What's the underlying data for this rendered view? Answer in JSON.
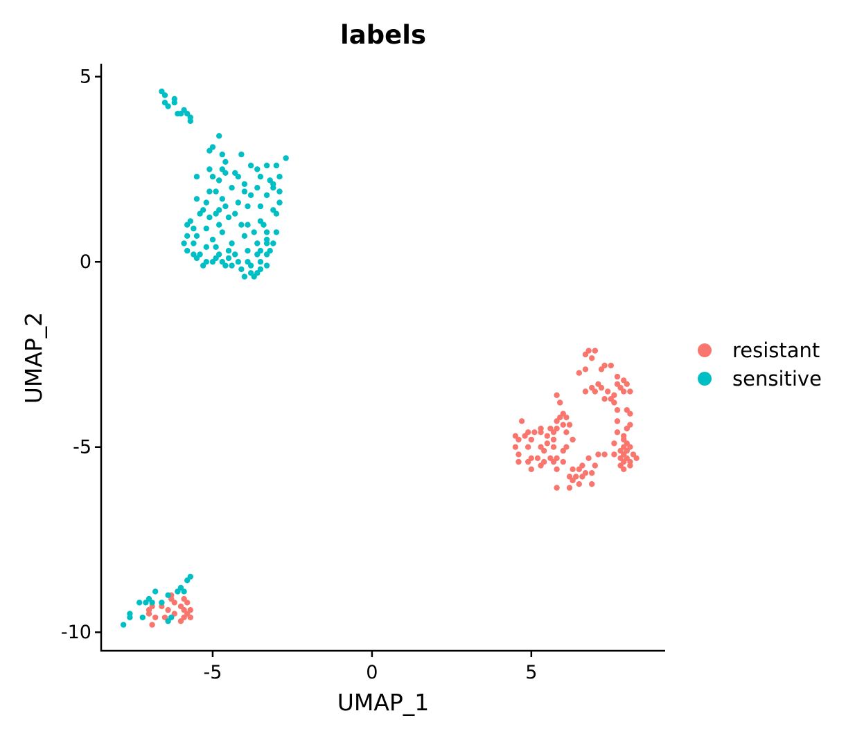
{
  "chart_data": {
    "type": "scatter",
    "title": "labels",
    "xlabel": "UMAP_1",
    "ylabel": "UMAP_2",
    "xlim": [
      -8.5,
      9.2
    ],
    "ylim": [
      -10.5,
      5.35
    ],
    "xticks": [
      -5,
      0,
      5
    ],
    "yticks": [
      -10,
      -5,
      0,
      5
    ],
    "legend_position": "right",
    "series": [
      {
        "name": "resistant",
        "color": "#F8766D",
        "points": [
          [
            6.8,
            -2.4
          ],
          [
            7.0,
            -2.4
          ],
          [
            6.7,
            -2.5
          ],
          [
            6.9,
            -2.6
          ],
          [
            7.3,
            -2.8
          ],
          [
            7.5,
            -2.8
          ],
          [
            6.7,
            -2.9
          ],
          [
            7.2,
            -2.9
          ],
          [
            6.5,
            -3.0
          ],
          [
            7.7,
            -3.1
          ],
          [
            7.9,
            -3.2
          ],
          [
            7.1,
            -3.3
          ],
          [
            7.7,
            -3.3
          ],
          [
            8.0,
            -3.3
          ],
          [
            6.9,
            -3.4
          ],
          [
            7.2,
            -3.4
          ],
          [
            7.8,
            -3.4
          ],
          [
            7.6,
            -3.6
          ],
          [
            6.7,
            -3.5
          ],
          [
            7.0,
            -3.5
          ],
          [
            7.4,
            -3.5
          ],
          [
            7.9,
            -3.5
          ],
          [
            8.1,
            -3.5
          ],
          [
            7.3,
            -3.7
          ],
          [
            7.5,
            -3.7
          ],
          [
            7.6,
            -3.8
          ],
          [
            7.7,
            -4.0
          ],
          [
            5.8,
            -3.6
          ],
          [
            5.9,
            -3.8
          ],
          [
            6.0,
            -4.1
          ],
          [
            5.9,
            -4.2
          ],
          [
            6.1,
            -4.2
          ],
          [
            5.8,
            -4.3
          ],
          [
            6.0,
            -4.4
          ],
          [
            5.6,
            -4.5
          ],
          [
            5.8,
            -4.5
          ],
          [
            6.2,
            -4.4
          ],
          [
            5.3,
            -4.6
          ],
          [
            5.7,
            -4.6
          ],
          [
            5.1,
            -4.6
          ],
          [
            5.5,
            -4.7
          ],
          [
            6.1,
            -4.6
          ],
          [
            4.7,
            -4.3
          ],
          [
            4.9,
            -4.6
          ],
          [
            5.3,
            -4.5
          ],
          [
            5.7,
            -4.8
          ],
          [
            4.5,
            -4.7
          ],
          [
            4.8,
            -4.7
          ],
          [
            4.6,
            -4.8
          ],
          [
            5.0,
            -4.8
          ],
          [
            5.5,
            -4.9
          ],
          [
            6.3,
            -4.8
          ],
          [
            4.5,
            -5.0
          ],
          [
            4.9,
            -5.0
          ],
          [
            5.3,
            -5.0
          ],
          [
            5.7,
            -5.0
          ],
          [
            6.1,
            -5.0
          ],
          [
            4.6,
            -5.2
          ],
          [
            5.4,
            -5.1
          ],
          [
            6.0,
            -5.1
          ],
          [
            5.0,
            -5.3
          ],
          [
            4.9,
            -5.4
          ],
          [
            5.2,
            -5.3
          ],
          [
            5.6,
            -5.3
          ],
          [
            5.8,
            -5.3
          ],
          [
            5.4,
            -5.4
          ],
          [
            5.7,
            -5.4
          ],
          [
            6.0,
            -5.4
          ],
          [
            4.6,
            -5.4
          ],
          [
            5.3,
            -5.5
          ],
          [
            5.0,
            -5.6
          ],
          [
            5.8,
            -5.6
          ],
          [
            6.6,
            -5.5
          ],
          [
            7.0,
            -5.5
          ],
          [
            6.3,
            -5.6
          ],
          [
            6.5,
            -5.6
          ],
          [
            6.7,
            -5.7
          ],
          [
            6.4,
            -5.8
          ],
          [
            6.2,
            -5.8
          ],
          [
            6.6,
            -5.8
          ],
          [
            6.9,
            -5.7
          ],
          [
            6.3,
            -5.9
          ],
          [
            6.5,
            -6.0
          ],
          [
            6.9,
            -6.0
          ],
          [
            6.2,
            -6.1
          ],
          [
            5.8,
            -6.1
          ],
          [
            6.8,
            -5.3
          ],
          [
            7.1,
            -5.2
          ],
          [
            7.9,
            -4.8
          ],
          [
            8.0,
            -4.9
          ],
          [
            7.9,
            -5.0
          ],
          [
            8.1,
            -5.0
          ],
          [
            7.8,
            -5.1
          ],
          [
            8.0,
            -5.1
          ],
          [
            7.6,
            -5.2
          ],
          [
            7.9,
            -5.2
          ],
          [
            8.2,
            -5.2
          ],
          [
            7.8,
            -5.3
          ],
          [
            8.0,
            -5.3
          ],
          [
            8.3,
            -5.3
          ],
          [
            7.9,
            -5.4
          ],
          [
            8.1,
            -5.5
          ],
          [
            7.9,
            -5.6
          ],
          [
            7.6,
            -4.9
          ],
          [
            8.0,
            -4.5
          ],
          [
            8.1,
            -4.4
          ],
          [
            7.7,
            -4.3
          ],
          [
            8.1,
            -4.1
          ],
          [
            8.0,
            -4.0
          ],
          [
            7.7,
            -4.6
          ],
          [
            7.9,
            -4.7
          ],
          [
            7.8,
            -5.5
          ],
          [
            8.1,
            -5.4
          ],
          [
            7.3,
            -5.2
          ],
          [
            -7.0,
            -9.4
          ],
          [
            -6.9,
            -9.3
          ],
          [
            -7.0,
            -9.5
          ],
          [
            -6.8,
            -9.6
          ],
          [
            -6.6,
            -9.3
          ],
          [
            -6.4,
            -9.4
          ],
          [
            -6.3,
            -9.0
          ],
          [
            -6.1,
            -8.9
          ],
          [
            -5.9,
            -9.1
          ],
          [
            -5.8,
            -9.2
          ],
          [
            -6.0,
            -9.3
          ],
          [
            -5.9,
            -9.4
          ],
          [
            -5.7,
            -9.4
          ],
          [
            -5.8,
            -9.5
          ],
          [
            -5.9,
            -9.6
          ],
          [
            -6.0,
            -9.7
          ],
          [
            -6.2,
            -9.5
          ],
          [
            -5.7,
            -9.6
          ],
          [
            -6.5,
            -9.6
          ],
          [
            -6.9,
            -9.8
          ],
          [
            -6.3,
            -9.1
          ],
          [
            -6.2,
            -9.2
          ]
        ]
      },
      {
        "name": "sensitive",
        "color": "#00BFC4",
        "points": [
          [
            -6.6,
            4.6
          ],
          [
            -6.5,
            4.5
          ],
          [
            -6.5,
            4.3
          ],
          [
            -6.2,
            4.3
          ],
          [
            -6.2,
            4.4
          ],
          [
            -6.4,
            4.2
          ],
          [
            -5.9,
            4.1
          ],
          [
            -6.0,
            4.0
          ],
          [
            -5.8,
            4.0
          ],
          [
            -5.7,
            3.9
          ],
          [
            -6.1,
            4.0
          ],
          [
            -5.7,
            3.8
          ],
          [
            -4.8,
            3.4
          ],
          [
            -5.0,
            3.1
          ],
          [
            -4.7,
            2.9
          ],
          [
            -5.1,
            3.0
          ],
          [
            -4.1,
            2.9
          ],
          [
            -3.6,
            2.5
          ],
          [
            -2.7,
            2.8
          ],
          [
            -3.3,
            2.6
          ],
          [
            -3.0,
            2.6
          ],
          [
            -4.7,
            2.5
          ],
          [
            -4.8,
            2.2
          ],
          [
            -4.3,
            2.4
          ],
          [
            -5.1,
            2.5
          ],
          [
            -5.5,
            2.3
          ],
          [
            -4.6,
            2.4
          ],
          [
            -3.8,
            2.6
          ],
          [
            -3.5,
            2.3
          ],
          [
            -2.9,
            2.3
          ],
          [
            -3.2,
            2.2
          ],
          [
            -3.1,
            2.0
          ],
          [
            -5.1,
            1.9
          ],
          [
            -4.9,
            1.9
          ],
          [
            -4.4,
            2.0
          ],
          [
            -4.0,
            2.1
          ],
          [
            -3.1,
            2.1
          ],
          [
            -2.9,
            1.9
          ],
          [
            -4.7,
            1.7
          ],
          [
            -5.5,
            1.7
          ],
          [
            -4.2,
            1.6
          ],
          [
            -3.8,
            1.8
          ],
          [
            -3.3,
            1.8
          ],
          [
            -2.9,
            1.6
          ],
          [
            -4.6,
            1.5
          ],
          [
            -4.9,
            1.3
          ],
          [
            -5.3,
            1.4
          ],
          [
            -5.1,
            1.2
          ],
          [
            -4.8,
            1.0
          ],
          [
            -5.4,
            1.3
          ],
          [
            -4.3,
            1.3
          ],
          [
            -3.9,
            1.5
          ],
          [
            -3.5,
            1.5
          ],
          [
            -3.1,
            1.4
          ],
          [
            -5.8,
            1.0
          ],
          [
            -5.6,
            0.9
          ],
          [
            -5.2,
            0.9
          ],
          [
            -4.7,
            0.8
          ],
          [
            -4.1,
            1.0
          ],
          [
            -3.9,
            1.0
          ],
          [
            -3.5,
            1.1
          ],
          [
            -3.0,
            1.3
          ],
          [
            -5.8,
            0.7
          ],
          [
            -5.5,
            0.7
          ],
          [
            -5.0,
            0.6
          ],
          [
            -4.4,
            0.5
          ],
          [
            -3.7,
            0.8
          ],
          [
            -3.3,
            0.8
          ],
          [
            -3.0,
            0.8
          ],
          [
            -5.9,
            0.5
          ],
          [
            -5.6,
            0.5
          ],
          [
            -5.2,
            0.4
          ],
          [
            -4.9,
            0.4
          ],
          [
            -4.5,
            0.3
          ],
          [
            -3.6,
            0.5
          ],
          [
            -3.3,
            0.5
          ],
          [
            -3.1,
            0.5
          ],
          [
            -5.8,
            0.3
          ],
          [
            -5.6,
            0.2
          ],
          [
            -5.4,
            0.2
          ],
          [
            -4.8,
            0.2
          ],
          [
            -4.3,
            0.2
          ],
          [
            -3.9,
            0.3
          ],
          [
            -3.5,
            0.3
          ],
          [
            -3.2,
            0.3
          ],
          [
            -5.5,
            0.1
          ],
          [
            -5.2,
            0.0
          ],
          [
            -4.9,
            0.1
          ],
          [
            -4.6,
            -0.1
          ],
          [
            -4.2,
            0.0
          ],
          [
            -3.8,
            -0.1
          ],
          [
            -3.5,
            0.0
          ],
          [
            -3.3,
            0.2
          ],
          [
            -5.3,
            -0.1
          ],
          [
            -4.7,
            0.0
          ],
          [
            -4.4,
            -0.1
          ],
          [
            -3.9,
            0.0
          ],
          [
            -4.0,
            -0.4
          ],
          [
            -3.8,
            -0.3
          ],
          [
            -3.6,
            -0.3
          ],
          [
            -3.7,
            -0.4
          ],
          [
            -3.5,
            -0.2
          ],
          [
            -3.3,
            -0.1
          ],
          [
            -5.0,
            0.0
          ],
          [
            -4.5,
            0.1
          ],
          [
            -4.1,
            -0.2
          ],
          [
            -3.6,
            0.2
          ],
          [
            -3.3,
            0.6
          ],
          [
            -5.7,
            1.1
          ],
          [
            -4.5,
            1.2
          ],
          [
            -4.0,
            0.7
          ],
          [
            -3.4,
            1.0
          ],
          [
            -4.8,
            1.4
          ],
          [
            -4.0,
            1.9
          ],
          [
            -3.6,
            2.0
          ],
          [
            -4.6,
            2.7
          ],
          [
            -5.0,
            2.3
          ],
          [
            -4.2,
            2.3
          ],
          [
            -5.2,
            1.6
          ],
          [
            -7.8,
            -9.8
          ],
          [
            -7.6,
            -9.6
          ],
          [
            -7.6,
            -9.5
          ],
          [
            -7.3,
            -9.2
          ],
          [
            -7.2,
            -9.6
          ],
          [
            -7.0,
            -9.1
          ],
          [
            -6.9,
            -9.2
          ],
          [
            -6.8,
            -8.9
          ],
          [
            -6.6,
            -9.2
          ],
          [
            -6.4,
            -9.0
          ],
          [
            -6.3,
            -9.6
          ],
          [
            -6.1,
            -8.9
          ],
          [
            -6.0,
            -8.8
          ],
          [
            -5.9,
            -8.9
          ],
          [
            -5.8,
            -8.6
          ],
          [
            -5.7,
            -8.5
          ],
          [
            -6.4,
            -9.7
          ],
          [
            -7.1,
            -9.2
          ]
        ]
      }
    ]
  }
}
